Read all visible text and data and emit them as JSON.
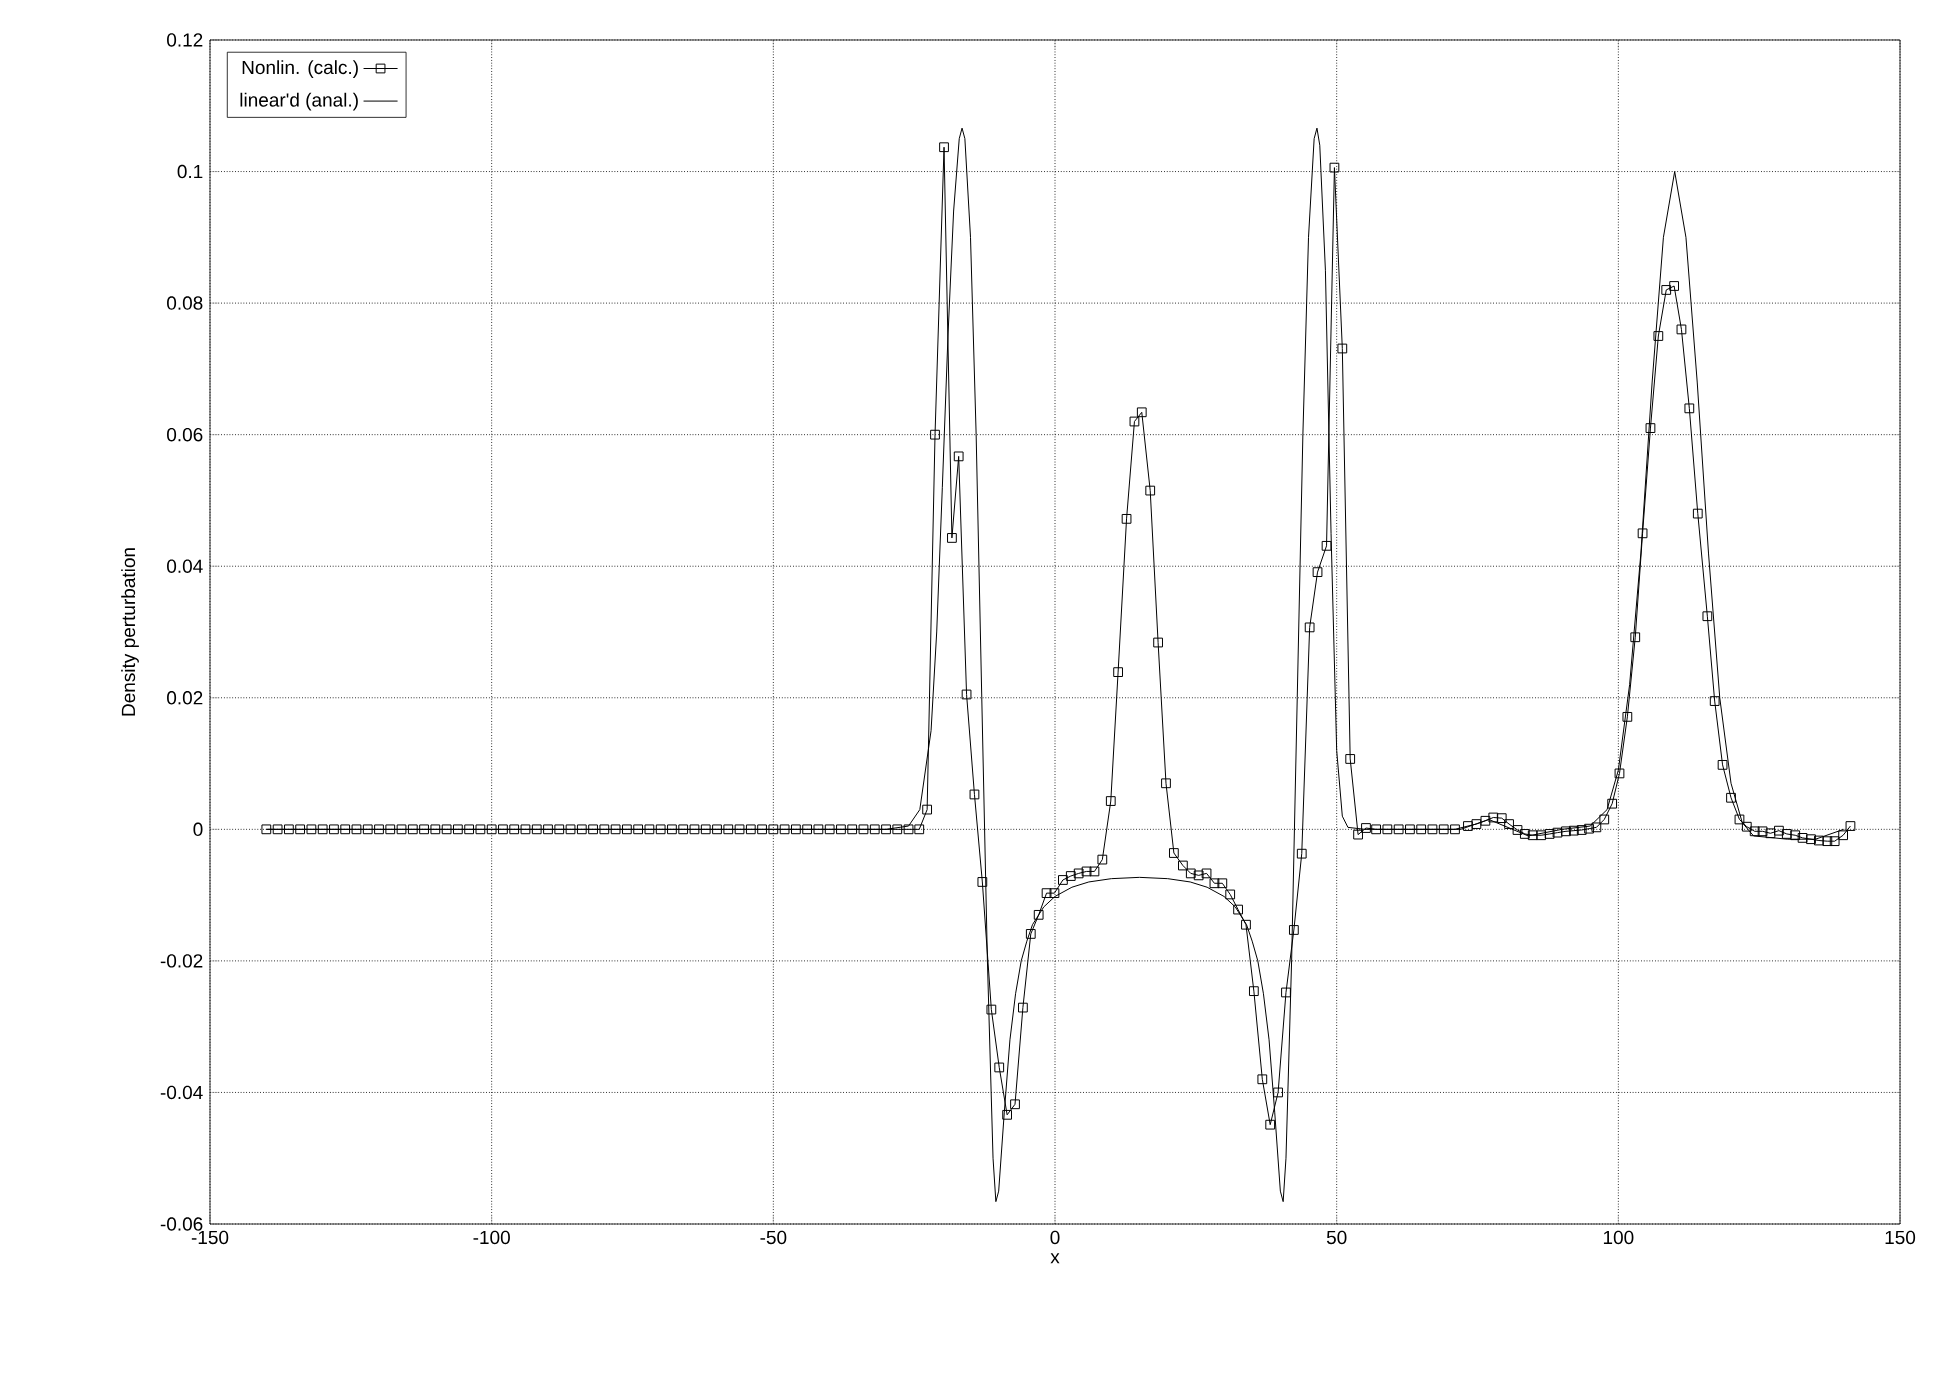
{
  "chart_data": {
    "type": "line",
    "xlabel": "x",
    "ylabel": "Density perturbation",
    "xlim": [
      -150,
      150
    ],
    "ylim": [
      -0.06,
      0.12
    ],
    "xticks": [
      -150,
      -100,
      -50,
      0,
      50,
      100,
      150
    ],
    "yticks": [
      -0.06,
      -0.04,
      -0.02,
      0,
      0.02,
      0.04,
      0.06,
      0.08,
      0.1,
      0.12
    ],
    "grid": true,
    "legend": "top left",
    "series": [
      {
        "name": "Nonlin. (calc.)",
        "color": "#000000",
        "marker": "square",
        "x": [
          -140,
          -138,
          -136,
          -134,
          -132,
          -130,
          -128,
          -126,
          -124,
          -122,
          -120,
          -118,
          -116,
          -114,
          -112,
          -110,
          -108,
          -106,
          -104,
          -102,
          -100,
          -98,
          -96,
          -94,
          -92,
          -90,
          -88,
          -86,
          -84,
          -82,
          -80,
          -78,
          -76,
          -74,
          -72,
          -70,
          -68,
          -66,
          -64,
          -62,
          -60,
          -58,
          -56,
          -54,
          -52,
          -50,
          -48,
          -46,
          -44,
          -42,
          -40,
          -38,
          -36,
          -34,
          -32,
          -30,
          -28,
          -26,
          -24.1,
          -22.7,
          -21.3,
          -19.7,
          -18.3,
          -17.1,
          -15.7,
          -14.3,
          -12.9,
          -11.3,
          -9.9,
          -8.5,
          -7.1,
          -5.7,
          -4.3,
          -2.9,
          -1.5,
          -0.1,
          1.4,
          2.8,
          4.2,
          5.6,
          7.0,
          8.4,
          9.9,
          11.2,
          12.7,
          14.1,
          15.4,
          16.9,
          18.3,
          19.7,
          21.1,
          22.7,
          24.1,
          25.5,
          26.9,
          28.3,
          29.7,
          31.1,
          32.5,
          33.9,
          35.3,
          36.8,
          38.2,
          39.6,
          41.0,
          42.4,
          43.8,
          45.2,
          46.6,
          48.2,
          49.6,
          51.0,
          52.4,
          53.8,
          55.2,
          57,
          59,
          61,
          63,
          65,
          67,
          69,
          71,
          73.3,
          74.8,
          76.4,
          77.8,
          79.3,
          80.6,
          82.1,
          83.4,
          84.8,
          86.3,
          87.8,
          89.2,
          90.7,
          92.1,
          93.5,
          94.8,
          96.1,
          97.5,
          98.9,
          100.2,
          101.6,
          103.0,
          104.3,
          105.7,
          107.1,
          108.5,
          109.9,
          111.2,
          112.6,
          114.1,
          115.8,
          117.1,
          118.5,
          120.0,
          121.5,
          122.8,
          124.2,
          125.6,
          127.0,
          128.5,
          129.9,
          131.4,
          132.7,
          134.2,
          135.6,
          137.1,
          138.4,
          139.9,
          141.2
        ],
        "values": [
          0,
          0,
          0,
          0,
          0,
          0,
          0,
          0,
          0,
          0,
          0,
          0,
          0,
          0,
          0,
          0,
          0,
          0,
          0,
          0,
          0,
          0,
          0,
          0,
          0,
          0,
          0,
          0,
          0,
          0,
          0,
          0,
          0,
          0,
          0,
          0,
          0,
          0,
          0,
          0,
          0,
          0,
          0,
          0,
          0,
          0,
          0,
          0,
          0,
          0,
          0,
          0,
          0,
          0,
          0,
          0,
          0,
          0,
          0,
          0.003,
          0.06,
          0.1037,
          0.0443,
          0.0567,
          0.0205,
          0.0053,
          -0.008,
          -0.0274,
          -0.0362,
          -0.0434,
          -0.0418,
          -0.0271,
          -0.0159,
          -0.013,
          -0.0097,
          -0.0097,
          -0.0077,
          -0.0071,
          -0.0067,
          -0.0064,
          -0.0064,
          -0.0046,
          0.0043,
          0.0239,
          0.0472,
          0.062,
          0.0634,
          0.0515,
          0.0284,
          0.007,
          -0.0036,
          -0.0055,
          -0.0067,
          -0.007,
          -0.0067,
          -0.0082,
          -0.0082,
          -0.0099,
          -0.0122,
          -0.0145,
          -0.0246,
          -0.038,
          -0.0449,
          -0.04,
          -0.0248,
          -0.0153,
          -0.0037,
          0.0307,
          0.0391,
          0.0431,
          0.1006,
          0.0731,
          0.0107,
          -0.0008,
          0.0002,
          0,
          0,
          0,
          0,
          0,
          0,
          0,
          0,
          0.0005,
          0.0008,
          0.0013,
          0.0018,
          0.0017,
          0.0008,
          -0.0001,
          -0.0007,
          -0.0009,
          -0.0009,
          -0.0007,
          -0.0005,
          -0.0003,
          -0.0002,
          -0.0001,
          0.0001,
          0.0003,
          0.0015,
          0.0039,
          0.0085,
          0.0171,
          0.0292,
          0.045,
          0.061,
          0.075,
          0.082,
          0.0826,
          0.076,
          0.064,
          0.048,
          0.0324,
          0.0195,
          0.0098,
          0.0048,
          0.0015,
          0.0004,
          -0.0003,
          -0.0003,
          -0.0006,
          -0.0002,
          -0.0007,
          -0.0009,
          -0.0013,
          -0.0015,
          -0.0017,
          -0.0018,
          -0.0018,
          -0.0009,
          0.0005
        ]
      },
      {
        "name": "linear'd (anal.)",
        "color": "#000000",
        "marker": "none",
        "x": [
          -140,
          -30,
          -26,
          -24,
          -22,
          -21,
          -20,
          -19,
          -18,
          -17,
          -16.5,
          -16,
          -15,
          -14,
          -13,
          -12,
          -11,
          -10.5,
          -10,
          -9,
          -8,
          -7,
          -6,
          -5,
          -4,
          -2,
          0,
          3,
          6,
          10,
          15,
          20,
          24,
          27,
          30,
          32,
          34,
          35,
          36,
          37,
          38,
          39,
          40,
          40.5,
          41,
          42,
          43,
          44,
          45,
          46,
          46.5,
          47,
          48,
          49,
          50,
          51,
          52,
          55,
          72,
          77,
          84,
          90,
          95,
          98,
          100,
          102,
          104,
          106,
          108,
          110,
          112,
          114,
          116,
          118,
          120,
          122,
          124,
          130,
          135,
          140
        ],
        "values": [
          0,
          0,
          0.0005,
          0.003,
          0.015,
          0.03,
          0.052,
          0.075,
          0.094,
          0.105,
          0.1066,
          0.105,
          0.09,
          0.06,
          0.02,
          -0.02,
          -0.05,
          -0.0566,
          -0.055,
          -0.043,
          -0.032,
          -0.025,
          -0.02,
          -0.017,
          -0.0145,
          -0.0118,
          -0.0102,
          -0.0088,
          -0.008,
          -0.0075,
          -0.0073,
          -0.0075,
          -0.008,
          -0.0088,
          -0.0102,
          -0.0118,
          -0.0145,
          -0.017,
          -0.02,
          -0.025,
          -0.032,
          -0.043,
          -0.055,
          -0.0566,
          -0.05,
          -0.02,
          0.02,
          0.06,
          0.09,
          0.105,
          0.1066,
          0.104,
          0.085,
          0.045,
          0.012,
          0.002,
          0.0003,
          0,
          0,
          0.0015,
          -0.001,
          0,
          0.0005,
          0.003,
          0.009,
          0.022,
          0.042,
          0.068,
          0.09,
          0.1,
          0.09,
          0.068,
          0.042,
          0.02,
          0.007,
          0.001,
          -0.001,
          -0.0015,
          -0.0015,
          0
        ]
      }
    ]
  }
}
